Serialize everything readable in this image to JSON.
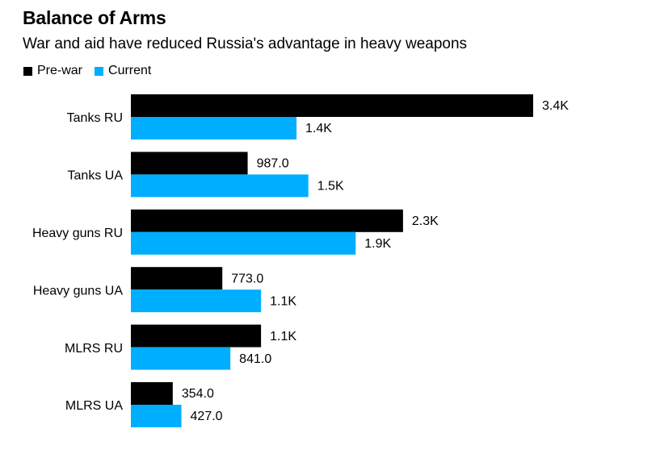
{
  "chart_data": {
    "type": "bar",
    "orientation": "horizontal",
    "title": "Balance of Arms",
    "subtitle": "War and aid have reduced Russia's advantage in heavy weapons",
    "categories": [
      "Tanks RU",
      "Tanks UA",
      "Heavy guns RU",
      "Heavy guns UA",
      "MLRS RU",
      "MLRS UA"
    ],
    "series": [
      {
        "name": "Pre-war",
        "color": "#000000",
        "values": [
          3400,
          987,
          2300,
          773,
          1100,
          354
        ],
        "labels": [
          "3.4K",
          "987.0",
          "2.3K",
          "773.0",
          "1.1K",
          "354.0"
        ]
      },
      {
        "name": "Current",
        "color": "#00aeff",
        "values": [
          1400,
          1500,
          1900,
          1100,
          841,
          427
        ],
        "labels": [
          "1.4K",
          "1.5K",
          "1.9K",
          "1.1K",
          "841.0",
          "427.0"
        ]
      }
    ],
    "xlim": [
      0,
      3400
    ],
    "grid": false,
    "legend_position": "top-left"
  }
}
